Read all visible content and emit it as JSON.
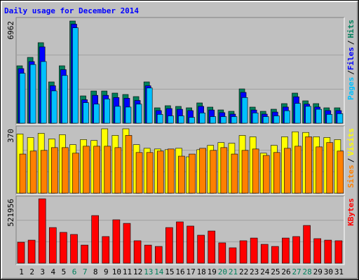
{
  "chart_data": [
    {
      "type": "bar",
      "title": "Daily usage for December 2014",
      "legend_separator": "/",
      "ylim": [
        0,
        6962
      ],
      "yticks": [
        6962
      ],
      "grid": true,
      "series": [
        {
          "name": "Hits",
          "color": "#00805c",
          "values": [
            3911,
            4484,
            5486,
            2814,
            3911,
            6962,
            1860,
            2194,
            2194,
            2051,
            1956,
            1813,
            2814,
            1049,
            1193,
            1145,
            1049,
            1383,
            1097,
            906,
            811,
            2337,
            1097,
            811,
            954,
            1336,
            2051,
            1526,
            1336,
            1049,
            1049
          ]
        },
        {
          "name": "Files",
          "color": "#0000ff",
          "values": [
            3720,
            4200,
            5200,
            2550,
            3650,
            6750,
            1600,
            1900,
            1900,
            1750,
            1700,
            1550,
            2550,
            860,
            1000,
            950,
            860,
            1150,
            900,
            720,
            620,
            2100,
            900,
            620,
            760,
            1100,
            1800,
            1300,
            1100,
            860,
            860
          ]
        },
        {
          "name": "Pages",
          "color": "#00c0ff",
          "values": [
            3400,
            4000,
            4200,
            2200,
            3250,
            6500,
            1400,
            1300,
            1650,
            1150,
            1100,
            1300,
            2400,
            600,
            500,
            500,
            400,
            700,
            450,
            450,
            450,
            1750,
            700,
            450,
            500,
            850,
            1350,
            1150,
            950,
            600,
            650
          ]
        }
      ]
    },
    {
      "type": "bar",
      "legend_separator": "/",
      "ylim": [
        0,
        370
      ],
      "yticks": [
        370
      ],
      "grid": true,
      "series": [
        {
          "name": "Visits",
          "color": "#ffff00",
          "values": [
            340,
            320,
            344,
            312,
            336,
            279,
            308,
            303,
            370,
            332,
            370,
            279,
            258,
            254,
            250,
            258,
            209,
            250,
            275,
            291,
            287,
            332,
            324,
            230,
            275,
            324,
            353,
            349,
            324,
            320,
            308
          ]
        },
        {
          "name": "Sites",
          "color": "#ff8000",
          "values": [
            225,
            242,
            246,
            262,
            262,
            230,
            270,
            270,
            270,
            262,
            332,
            234,
            234,
            242,
            254,
            213,
            225,
            258,
            246,
            262,
            225,
            246,
            254,
            217,
            234,
            258,
            270,
            324,
            266,
            291,
            242
          ]
        }
      ]
    },
    {
      "type": "bar",
      "ylim": [
        0,
        521956
      ],
      "yticks": [
        521956
      ],
      "grid": true,
      "categories": [
        "1",
        "2",
        "3",
        "4",
        "5",
        "6",
        "7",
        "8",
        "9",
        "10",
        "11",
        "12",
        "13",
        "14",
        "15",
        "16",
        "17",
        "18",
        "19",
        "20",
        "21",
        "22",
        "23",
        "24",
        "25",
        "26",
        "27",
        "28",
        "29",
        "30",
        "31"
      ],
      "category_colors": [
        "#000000",
        "#000000",
        "#000000",
        "#000000",
        "#000000",
        "#00805c",
        "#00805c",
        "#000000",
        "#000000",
        "#000000",
        "#000000",
        "#000000",
        "#00805c",
        "#00805c",
        "#000000",
        "#000000",
        "#000000",
        "#000000",
        "#000000",
        "#00805c",
        "#00805c",
        "#000000",
        "#000000",
        "#000000",
        "#000000",
        "#000000",
        "#00805c",
        "#00805c",
        "#000000",
        "#000000",
        "#000000"
      ],
      "series": [
        {
          "name": "KBytes",
          "color": "#ff0000",
          "values": [
            170000,
            187000,
            521956,
            289000,
            250000,
            233000,
            147000,
            386000,
            216000,
            352000,
            323000,
            182000,
            147000,
            136000,
            289000,
            335000,
            301000,
            227000,
            261000,
            165000,
            125000,
            182000,
            204000,
            153000,
            136000,
            204000,
            216000,
            306000,
            199000,
            187000,
            182000
          ]
        }
      ]
    }
  ]
}
